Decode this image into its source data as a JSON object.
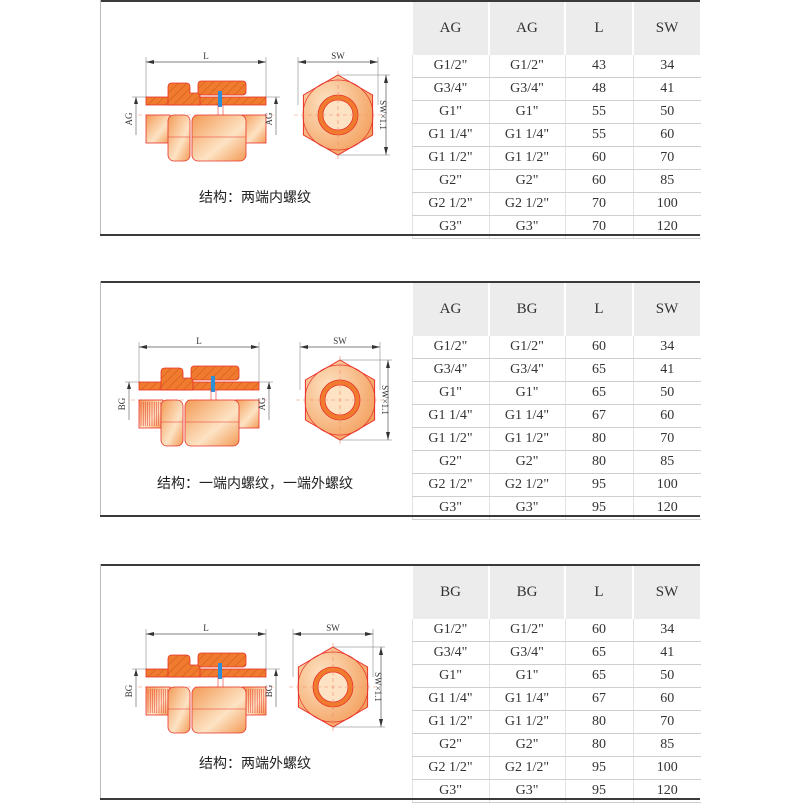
{
  "colors": {
    "body_fill": "#f07a2e",
    "gradient_light": "#fde3c4",
    "gradient_dark": "#f39a55",
    "outline": "#e8322a",
    "gasket": "#2f8fd6",
    "header_bg": "#ececec",
    "rule": "#3a3a3a"
  },
  "sections": [
    {
      "caption": "结构：两端内螺纹",
      "left_end": "female",
      "right_end": "female",
      "dims": {
        "length": "L",
        "sw": "SW",
        "left_thread": "AG",
        "right_thread": "AG",
        "sw_height": "SW×1.1"
      },
      "table": {
        "headers": [
          "AG",
          "AG",
          "L",
          "SW"
        ],
        "rows": [
          [
            "G1/2\"",
            "G1/2\"",
            "43",
            "34"
          ],
          [
            "G3/4\"",
            "G3/4\"",
            "48",
            "41"
          ],
          [
            "G1\"",
            "G1\"",
            "55",
            "50"
          ],
          [
            "G1 1/4\"",
            "G1 1/4\"",
            "55",
            "60"
          ],
          [
            "G1 1/2\"",
            "G1 1/2\"",
            "60",
            "70"
          ],
          [
            "G2\"",
            "G2\"",
            "60",
            "85"
          ],
          [
            "G2 1/2\"",
            "G2 1/2\"",
            "70",
            "100"
          ],
          [
            "G3\"",
            "G3\"",
            "70",
            "120"
          ]
        ]
      }
    },
    {
      "caption": "结构：一端内螺纹，一端外螺纹",
      "left_end": "male",
      "right_end": "female",
      "dims": {
        "length": "L",
        "sw": "SW",
        "left_thread": "BG",
        "right_thread": "AG",
        "sw_height": "SW×1.1"
      },
      "table": {
        "headers": [
          "AG",
          "BG",
          "L",
          "SW"
        ],
        "rows": [
          [
            "G1/2\"",
            "G1/2\"",
            "60",
            "34"
          ],
          [
            "G3/4\"",
            "G3/4\"",
            "65",
            "41"
          ],
          [
            "G1\"",
            "G1\"",
            "65",
            "50"
          ],
          [
            "G1 1/4\"",
            "G1 1/4\"",
            "67",
            "60"
          ],
          [
            "G1 1/2\"",
            "G1 1/2\"",
            "80",
            "70"
          ],
          [
            "G2\"",
            "G2\"",
            "80",
            "85"
          ],
          [
            "G2 1/2\"",
            "G2 1/2\"",
            "95",
            "100"
          ],
          [
            "G3\"",
            "G3\"",
            "95",
            "120"
          ]
        ]
      }
    },
    {
      "caption": "结构：两端外螺纹",
      "left_end": "male",
      "right_end": "male",
      "dims": {
        "length": "L",
        "sw": "SW",
        "left_thread": "BG",
        "right_thread": "BG",
        "sw_height": "SW×1.1"
      },
      "table": {
        "headers": [
          "BG",
          "BG",
          "L",
          "SW"
        ],
        "rows": [
          [
            "G1/2\"",
            "G1/2\"",
            "60",
            "34"
          ],
          [
            "G3/4\"",
            "G3/4\"",
            "65",
            "41"
          ],
          [
            "G1\"",
            "G1\"",
            "65",
            "50"
          ],
          [
            "G1 1/4\"",
            "G1 1/4\"",
            "67",
            "60"
          ],
          [
            "G1 1/2\"",
            "G1 1/2\"",
            "80",
            "70"
          ],
          [
            "G2\"",
            "G2\"",
            "80",
            "85"
          ],
          [
            "G2 1/2\"",
            "G2 1/2\"",
            "95",
            "100"
          ],
          [
            "G3\"",
            "G3\"",
            "95",
            "120"
          ]
        ]
      }
    }
  ]
}
